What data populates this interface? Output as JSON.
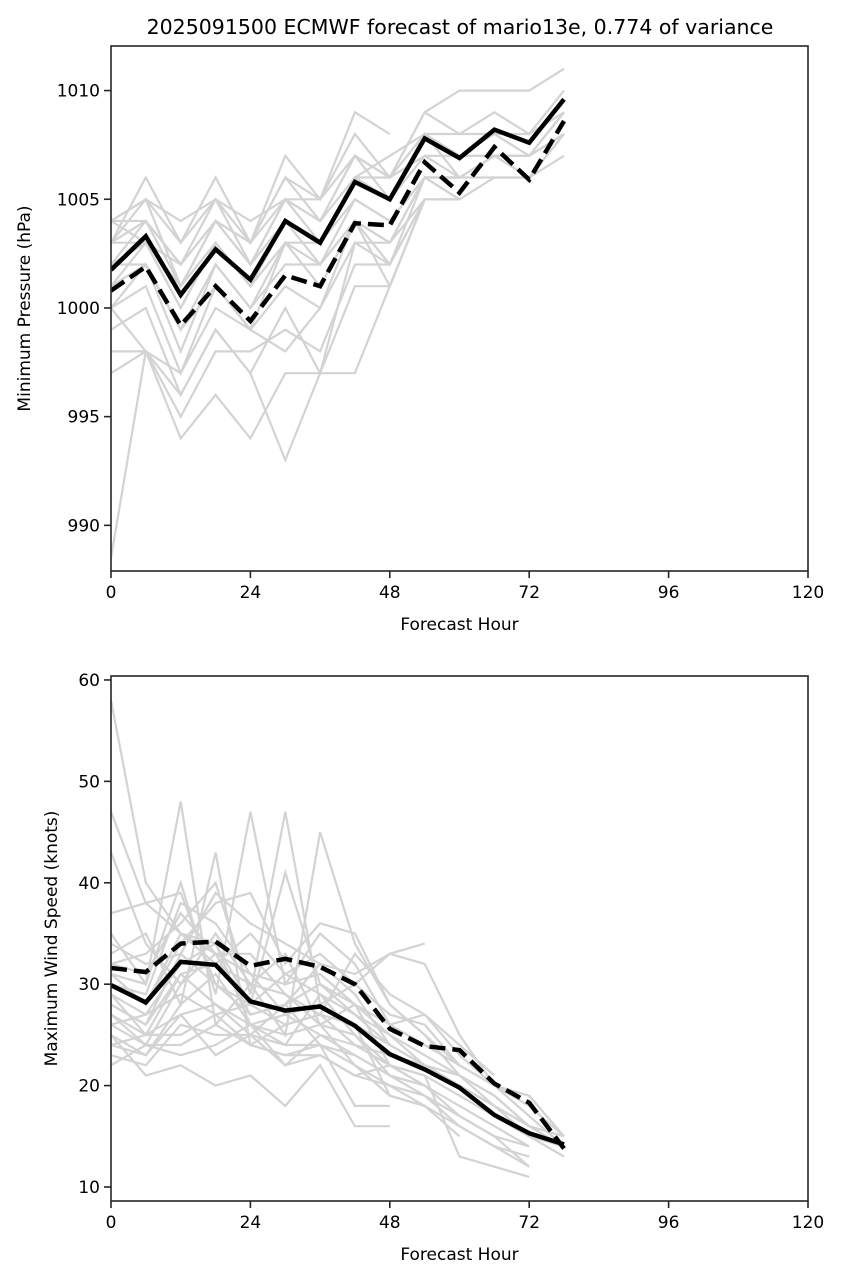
{
  "figure_title": "2025091500 ECMWF forecast of mario13e, 0.774 of variance",
  "colors": {
    "member": "#d3d3d3",
    "mean": "#000000",
    "axis": "#262626"
  },
  "chart_data": [
    {
      "type": "line",
      "panel": "pressure",
      "title": "2025091500 ECMWF forecast of mario13e, 0.774 of variance",
      "xlabel": "Forecast Hour",
      "ylabel": "Minimum Pressure (hPa)",
      "xlim": [
        0,
        120
      ],
      "ylim": [
        987.9,
        1012.05
      ],
      "xticks": [
        0,
        24,
        48,
        72,
        96,
        120
      ],
      "xtick_labels": [
        "0",
        "24",
        "48",
        "72",
        "96",
        "120"
      ],
      "yticks": [
        990,
        995,
        1000,
        1005,
        1010
      ],
      "ytick_labels": [
        "990",
        "995",
        "1000",
        "1005",
        "1010"
      ],
      "grid": false,
      "x": [
        0,
        6,
        12,
        18,
        24,
        30,
        36,
        42,
        48,
        54,
        60,
        66,
        72,
        78
      ],
      "series": [
        {
          "name": "ensemble-mean-solid",
          "style": "solid",
          "values": [
            1001.75,
            1003.3,
            1000.6,
            1002.7,
            1001.3,
            1004.0,
            1003.0,
            1005.8,
            1005.0,
            1007.8,
            1006.9,
            1008.2,
            1007.6,
            1009.6
          ]
        },
        {
          "name": "ensemble-mean-dashed",
          "style": "dashed",
          "values": [
            1000.8,
            1001.9,
            999.2,
            1001.0,
            999.4,
            1001.5,
            1001.0,
            1003.9,
            1003.8,
            1006.7,
            1005.3,
            1007.4,
            1005.9,
            1008.6
          ]
        }
      ],
      "members": [
        [
          1004,
          1005,
          1004,
          1005,
          1004,
          1005,
          1005,
          1009,
          1008
        ],
        [
          1003,
          1006,
          1003,
          1006,
          1003,
          1007,
          1005,
          1008,
          1006,
          1009,
          1010,
          1010,
          1010,
          1011
        ],
        [
          1004,
          1005,
          1003,
          1005,
          1003,
          1006,
          1004,
          1007,
          1006,
          1009,
          1008,
          1009,
          1008,
          1010
        ],
        [
          1003,
          1004,
          1002,
          1005,
          1002,
          1005,
          1004,
          1007,
          1006,
          1008,
          1007,
          1008,
          1007,
          1009
        ],
        [
          1002,
          1004,
          1001,
          1004,
          1002,
          1005,
          1003,
          1006,
          1005,
          1008,
          1008,
          1008,
          1008,
          1009
        ],
        [
          1003,
          1005,
          1001,
          1004,
          1003,
          1006,
          1005,
          1007,
          1005,
          1008,
          1006,
          1007,
          1006,
          1008
        ],
        [
          1002,
          1003,
          1000,
          1003,
          1001,
          1004,
          1003,
          1006,
          1005,
          1007,
          1007,
          1007,
          1007,
          1009
        ],
        [
          1004,
          1004,
          1002,
          1004,
          1002,
          1004,
          1003,
          1006,
          1006,
          1007,
          1006,
          1006,
          1006,
          1008
        ],
        [
          1001,
          1003,
          1000,
          1003,
          1001,
          1003,
          1003,
          1005,
          1004,
          1006,
          1005
        ],
        [
          1000,
          1002,
          999,
          1002,
          1000,
          1003,
          1002,
          1005,
          1004,
          1006,
          1005,
          1006,
          1006,
          1007
        ],
        [
          1003,
          1003,
          1001,
          1003,
          1001,
          1004,
          1002,
          1004,
          1003,
          1005,
          1005
        ],
        [
          1001,
          1002,
          998,
          1002,
          1000,
          1002,
          1002,
          1004,
          1002,
          1005,
          1005
        ],
        [
          1000,
          1001,
          997,
          1001,
          999,
          1003,
          1001,
          1004,
          1001,
          1005
        ],
        [
          999,
          1000,
          996,
          999,
          997,
          1000,
          997,
          1001,
          1001,
          1005
        ],
        [
          998,
          998,
          995,
          998,
          998,
          999,
          998,
          1002,
          1002,
          1006,
          1006
        ],
        [
          997,
          998,
          994,
          996,
          994,
          997,
          997,
          1003,
          1002,
          1005
        ],
        [
          988.5,
          998,
          996,
          999,
          997,
          993,
          997,
          997,
          1001,
          1005
        ],
        [
          1000,
          998,
          997,
          1000,
          999,
          998,
          1000,
          1003,
          1003,
          1006,
          1006,
          1007,
          1007,
          1008
        ],
        [
          1002,
          1002,
          999,
          1001,
          999,
          1001,
          1000,
          1004,
          1003,
          1006,
          1006,
          1007,
          1007,
          1008
        ],
        [
          1004,
          1003,
          1002,
          1004,
          1003,
          1005,
          1004,
          1006,
          1007,
          1008,
          1007,
          1007,
          1007,
          1008
        ]
      ]
    },
    {
      "type": "line",
      "panel": "wind",
      "xlabel": "Forecast Hour",
      "ylabel": "Maximum Wind Speed (knots)",
      "xlim": [
        0,
        120
      ],
      "ylim": [
        8.62,
        60.39
      ],
      "xticks": [
        0,
        24,
        48,
        72,
        96,
        120
      ],
      "xtick_labels": [
        "0",
        "24",
        "48",
        "72",
        "96",
        "120"
      ],
      "yticks": [
        10,
        20,
        30,
        40,
        50,
        60
      ],
      "ytick_labels": [
        "10",
        "20",
        "30",
        "40",
        "50",
        "60"
      ],
      "grid": false,
      "x": [
        0,
        6,
        12,
        18,
        24,
        30,
        36,
        42,
        48,
        54,
        60,
        66,
        72,
        78
      ],
      "series": [
        {
          "name": "ensemble-mean-solid",
          "style": "solid",
          "values": [
            29.9,
            28.2,
            32.2,
            31.9,
            28.3,
            27.4,
            27.8,
            25.9,
            23.1,
            21.6,
            19.8,
            17.1,
            15.3,
            14.2
          ]
        },
        {
          "name": "ensemble-mean-dashed",
          "style": "dashed",
          "values": [
            31.6,
            31.2,
            34.0,
            34.2,
            31.8,
            32.5,
            31.7,
            30.0,
            25.6,
            23.9,
            23.5,
            20.2,
            18.3,
            13.8
          ]
        }
      ],
      "members": [
        [
          58,
          40,
          35,
          33,
          31,
          27,
          28,
          26,
          24
        ],
        [
          47,
          38,
          35,
          32,
          30,
          29,
          26,
          25,
          22,
          20
        ],
        [
          43,
          34,
          30,
          33,
          27,
          28,
          30,
          28,
          25,
          22,
          20,
          18
        ],
        [
          37,
          38,
          39,
          30,
          28,
          41,
          30,
          27,
          24,
          22,
          20,
          17,
          15,
          14
        ],
        [
          35,
          30,
          48,
          26,
          30,
          25,
          45,
          34,
          28,
          25,
          22,
          20,
          19,
          15
        ],
        [
          33,
          35,
          28,
          43,
          24,
          26,
          27,
          33,
          29,
          27,
          23,
          20,
          17,
          14
        ],
        [
          32,
          33,
          36,
          40,
          29,
          47,
          28,
          30,
          33,
          34
        ],
        [
          31,
          30,
          40,
          29,
          47,
          30,
          35,
          32,
          26,
          24,
          22
        ],
        [
          30,
          28,
          34,
          38,
          39,
          32,
          36,
          35,
          28,
          25,
          21,
          19,
          16,
          15
        ],
        [
          29,
          25,
          31,
          32,
          35,
          31,
          29,
          27,
          25,
          23,
          21,
          18,
          16,
          14
        ],
        [
          28,
          26,
          33,
          30,
          27,
          28,
          32,
          29,
          24,
          22,
          20,
          18,
          15,
          13
        ],
        [
          27,
          24,
          30,
          35,
          30,
          33,
          26,
          28,
          22,
          21,
          19,
          17,
          15,
          13
        ],
        [
          26,
          27,
          29,
          27,
          28,
          26,
          27,
          24,
          23,
          22,
          21,
          19,
          16,
          14
        ],
        [
          25,
          23,
          28,
          31,
          26,
          24,
          29,
          25,
          21,
          20,
          18,
          16,
          14
        ],
        [
          24,
          25,
          27,
          28,
          25,
          22,
          25,
          23,
          21,
          20,
          17,
          15,
          12
        ],
        [
          23,
          22,
          26,
          25,
          25,
          24,
          24,
          22,
          20,
          18,
          16,
          14,
          13
        ],
        [
          22,
          24,
          24,
          26,
          24,
          23,
          23,
          21,
          22,
          20
        ],
        [
          30,
          29,
          38,
          36,
          31,
          30,
          31,
          28,
          26,
          27,
          24,
          21
        ],
        [
          32,
          31,
          37,
          33,
          33,
          29,
          27,
          26,
          19,
          18
        ],
        [
          29,
          27,
          32,
          34,
          26,
          25,
          26,
          22,
          19,
          18,
          15
        ],
        [
          27,
          25,
          25,
          27,
          24,
          23,
          24,
          18,
          18
        ],
        [
          25,
          21,
          22,
          20,
          21,
          18,
          22,
          16,
          16
        ],
        [
          28,
          26,
          31,
          28,
          26,
          27,
          25,
          24,
          22,
          21,
          13,
          12,
          11
        ],
        [
          26,
          24,
          23,
          24,
          26,
          22,
          23,
          21,
          20,
          19,
          17,
          15,
          14
        ],
        [
          31,
          28,
          35,
          34,
          28,
          31,
          33,
          30,
          27,
          26,
          22,
          20,
          18,
          15
        ],
        [
          34,
          32,
          33,
          39,
          36,
          34,
          32,
          31,
          33,
          32,
          25,
          20,
          19,
          15
        ],
        [
          24,
          23,
          27,
          23,
          25,
          28,
          24,
          23,
          21,
          19,
          16,
          14,
          12
        ]
      ]
    }
  ]
}
